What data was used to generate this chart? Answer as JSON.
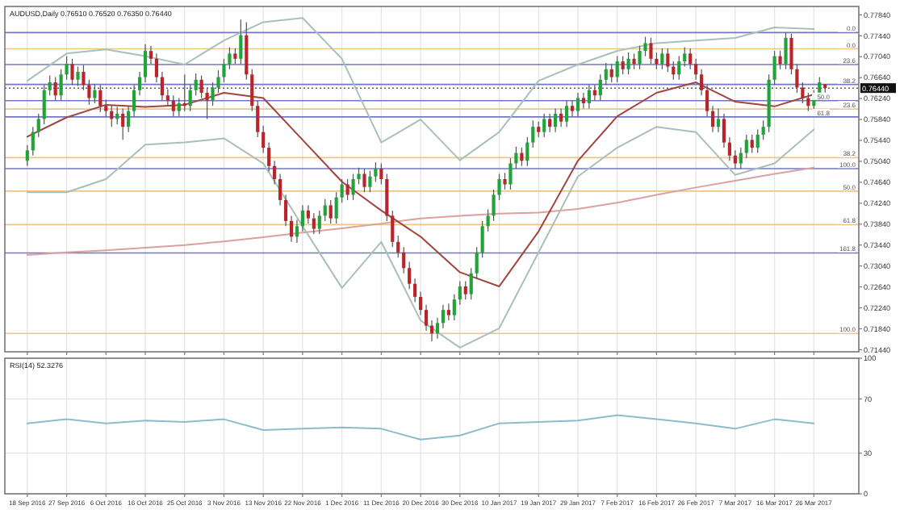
{
  "chart_data": [
    {
      "type": "candlestick",
      "title": "AUDUSD,Daily 0.76510 0.76520 0.76350 0.76440",
      "categories": [
        "18 Sep 2016",
        null,
        null,
        null,
        null,
        null,
        null,
        "27 Sep 2016",
        null,
        null,
        null,
        null,
        null,
        null,
        "6 Oct 2016",
        null,
        null,
        null,
        null,
        null,
        null,
        "16 Oct 2016",
        null,
        null,
        null,
        null,
        null,
        null,
        "25 Oct 2016",
        null,
        null,
        null,
        null,
        null,
        null,
        "3 Nov 2016",
        null,
        null,
        null,
        null,
        null,
        null,
        "13 Nov 2016",
        null,
        null,
        null,
        null,
        null,
        null,
        "22 Nov 2016",
        null,
        null,
        null,
        null,
        null,
        null,
        "1 Dec 2016",
        null,
        null,
        null,
        null,
        null,
        null,
        "11 Dec 2016",
        null,
        null,
        null,
        null,
        null,
        null,
        "20 Dec 2016",
        null,
        null,
        null,
        null,
        null,
        null,
        "30 Dec 2016",
        null,
        null,
        null,
        null,
        null,
        null,
        "10 Jan 2017",
        null,
        null,
        null,
        null,
        null,
        null,
        "19 Jan 2017",
        null,
        null,
        null,
        null,
        null,
        null,
        "29 Jan 2017",
        null,
        null,
        null,
        null,
        null,
        null,
        "7 Feb 2017",
        null,
        null,
        null,
        null,
        null,
        null,
        "16 Feb 2017",
        null,
        null,
        null,
        null,
        null,
        null,
        "26 Feb 2017",
        null,
        null,
        null,
        null,
        null,
        null,
        "7 Mar 2017",
        null,
        null,
        null,
        null,
        null,
        null,
        "16 Mar 2017",
        null,
        null,
        null,
        null,
        null,
        null,
        "26 Mar 2017",
        null,
        null
      ],
      "ohlc": [
        [
          0.7505,
          0.7535,
          0.7495,
          0.7525
        ],
        [
          0.7525,
          0.757,
          0.7515,
          0.756
        ],
        [
          0.756,
          0.7595,
          0.755,
          0.7585
        ],
        [
          0.7585,
          0.765,
          0.7575,
          0.764
        ],
        [
          0.764,
          0.7668,
          0.763,
          0.7655
        ],
        [
          0.7655,
          0.7665,
          0.762,
          0.763
        ],
        [
          0.763,
          0.768,
          0.762,
          0.767
        ],
        [
          0.767,
          0.7705,
          0.766,
          0.769
        ],
        [
          0.769,
          0.77,
          0.765,
          0.766
        ],
        [
          0.766,
          0.7685,
          0.7648,
          0.7675
        ],
        [
          0.7675,
          0.7688,
          0.764,
          0.765
        ],
        [
          0.765,
          0.766,
          0.7612,
          0.7625
        ],
        [
          0.7625,
          0.7652,
          0.7615,
          0.764
        ],
        [
          0.764,
          0.765,
          0.7598,
          0.761
        ],
        [
          0.761,
          0.7622,
          0.759,
          0.76
        ],
        [
          0.76,
          0.7612,
          0.757,
          0.7585
        ],
        [
          0.7585,
          0.7608,
          0.7575,
          0.7595
        ],
        [
          0.7595,
          0.7605,
          0.7545,
          0.757
        ],
        [
          0.757,
          0.761,
          0.756,
          0.76
        ],
        [
          0.76,
          0.765,
          0.759,
          0.764
        ],
        [
          0.764,
          0.7675,
          0.763,
          0.7665
        ],
        [
          0.7665,
          0.7728,
          0.7655,
          0.7715
        ],
        [
          0.7715,
          0.7725,
          0.769,
          0.77
        ],
        [
          0.77,
          0.771,
          0.7655,
          0.7665
        ],
        [
          0.7665,
          0.7675,
          0.762,
          0.763
        ],
        [
          0.763,
          0.7642,
          0.761,
          0.762
        ],
        [
          0.762,
          0.763,
          0.759,
          0.76
        ],
        [
          0.76,
          0.7625,
          0.759,
          0.7615
        ],
        [
          0.7615,
          0.767,
          0.76,
          0.761
        ],
        [
          0.761,
          0.765,
          0.76,
          0.764
        ],
        [
          0.764,
          0.7672,
          0.763,
          0.766
        ],
        [
          0.766,
          0.7668,
          0.7625,
          0.7635
        ],
        [
          0.7635,
          0.7645,
          0.7585,
          0.762
        ],
        [
          0.762,
          0.7655,
          0.761,
          0.7645
        ],
        [
          0.7645,
          0.7678,
          0.7635,
          0.7665
        ],
        [
          0.7665,
          0.77,
          0.7655,
          0.769
        ],
        [
          0.769,
          0.7722,
          0.768,
          0.771
        ],
        [
          0.771,
          0.772,
          0.769,
          0.77
        ],
        [
          0.77,
          0.7775,
          0.769,
          0.7745
        ],
        [
          0.7745,
          0.777,
          0.766,
          0.767
        ],
        [
          0.767,
          0.768,
          0.76,
          0.761
        ],
        [
          0.761,
          0.762,
          0.755,
          0.756
        ],
        [
          0.756,
          0.7572,
          0.752,
          0.753
        ],
        [
          0.753,
          0.754,
          0.7485,
          0.7495
        ],
        [
          0.7495,
          0.7505,
          0.746,
          0.747
        ],
        [
          0.747,
          0.748,
          0.742,
          0.743
        ],
        [
          0.743,
          0.744,
          0.738,
          0.739
        ],
        [
          0.739,
          0.74,
          0.735,
          0.736
        ],
        [
          0.736,
          0.7392,
          0.7348,
          0.738
        ],
        [
          0.738,
          0.742,
          0.737,
          0.741
        ],
        [
          0.741,
          0.742,
          0.7385,
          0.7395
        ],
        [
          0.7395,
          0.7405,
          0.7365,
          0.7375
        ],
        [
          0.7375,
          0.741,
          0.7365,
          0.74
        ],
        [
          0.74,
          0.7432,
          0.739,
          0.742
        ],
        [
          0.742,
          0.743,
          0.7385,
          0.7395
        ],
        [
          0.7395,
          0.7445,
          0.7385,
          0.7435
        ],
        [
          0.7435,
          0.747,
          0.7425,
          0.746
        ],
        [
          0.746,
          0.747,
          0.743,
          0.744
        ],
        [
          0.744,
          0.748,
          0.743,
          0.747
        ],
        [
          0.747,
          0.7492,
          0.746,
          0.748
        ],
        [
          0.748,
          0.749,
          0.7445,
          0.7455
        ],
        [
          0.7455,
          0.7486,
          0.7445,
          0.7475
        ],
        [
          0.7475,
          0.7502,
          0.7465,
          0.749
        ],
        [
          0.749,
          0.75,
          0.746,
          0.747
        ],
        [
          0.747,
          0.748,
          0.739,
          0.74
        ],
        [
          0.74,
          0.741,
          0.734,
          0.735
        ],
        [
          0.735,
          0.7362,
          0.732,
          0.733
        ],
        [
          0.733,
          0.734,
          0.729,
          0.73
        ],
        [
          0.73,
          0.7312,
          0.726,
          0.727
        ],
        [
          0.727,
          0.728,
          0.7235,
          0.7245
        ],
        [
          0.7245,
          0.7255,
          0.721,
          0.722
        ],
        [
          0.722,
          0.723,
          0.718,
          0.719
        ],
        [
          0.719,
          0.72,
          0.716,
          0.7175
        ],
        [
          0.7175,
          0.7205,
          0.7165,
          0.7195
        ],
        [
          0.7195,
          0.723,
          0.7185,
          0.722
        ],
        [
          0.722,
          0.7232,
          0.72,
          0.721
        ],
        [
          0.721,
          0.725,
          0.72,
          0.724
        ],
        [
          0.724,
          0.7275,
          0.723,
          0.7265
        ],
        [
          0.7265,
          0.7275,
          0.724,
          0.725
        ],
        [
          0.725,
          0.73,
          0.724,
          0.729
        ],
        [
          0.729,
          0.734,
          0.728,
          0.733
        ],
        [
          0.733,
          0.739,
          0.732,
          0.738
        ],
        [
          0.738,
          0.7412,
          0.737,
          0.74
        ],
        [
          0.74,
          0.745,
          0.739,
          0.744
        ],
        [
          0.744,
          0.748,
          0.743,
          0.747
        ],
        [
          0.747,
          0.7482,
          0.745,
          0.746
        ],
        [
          0.746,
          0.751,
          0.745,
          0.75
        ],
        [
          0.75,
          0.7532,
          0.749,
          0.752
        ],
        [
          0.752,
          0.753,
          0.7495,
          0.7505
        ],
        [
          0.7505,
          0.755,
          0.7495,
          0.754
        ],
        [
          0.754,
          0.7582,
          0.753,
          0.757
        ],
        [
          0.757,
          0.758,
          0.755,
          0.756
        ],
        [
          0.756,
          0.7595,
          0.755,
          0.7585
        ],
        [
          0.7585,
          0.7595,
          0.756,
          0.757
        ],
        [
          0.757,
          0.7605,
          0.756,
          0.7595
        ],
        [
          0.7595,
          0.7605,
          0.757,
          0.758
        ],
        [
          0.758,
          0.762,
          0.757,
          0.761
        ],
        [
          0.761,
          0.762,
          0.759,
          0.76
        ],
        [
          0.76,
          0.7635,
          0.759,
          0.7625
        ],
        [
          0.7625,
          0.7635,
          0.7605,
          0.7615
        ],
        [
          0.7615,
          0.765,
          0.7605,
          0.764
        ],
        [
          0.764,
          0.765,
          0.762,
          0.763
        ],
        [
          0.763,
          0.767,
          0.762,
          0.766
        ],
        [
          0.766,
          0.7692,
          0.765,
          0.768
        ],
        [
          0.768,
          0.769,
          0.7655,
          0.7665
        ],
        [
          0.7665,
          0.7705,
          0.7655,
          0.7695
        ],
        [
          0.7695,
          0.7705,
          0.767,
          0.768
        ],
        [
          0.768,
          0.7712,
          0.767,
          0.77
        ],
        [
          0.77,
          0.771,
          0.768,
          0.769
        ],
        [
          0.769,
          0.7725,
          0.768,
          0.7715
        ],
        [
          0.7715,
          0.7742,
          0.7705,
          0.773
        ],
        [
          0.773,
          0.774,
          0.769,
          0.77
        ],
        [
          0.77,
          0.7712,
          0.768,
          0.769
        ],
        [
          0.769,
          0.772,
          0.768,
          0.771
        ],
        [
          0.771,
          0.772,
          0.7675,
          0.7685
        ],
        [
          0.7685,
          0.7695,
          0.766,
          0.767
        ],
        [
          0.767,
          0.7705,
          0.766,
          0.7695
        ],
        [
          0.7695,
          0.7722,
          0.7685,
          0.771
        ],
        [
          0.771,
          0.772,
          0.768,
          0.769
        ],
        [
          0.769,
          0.77,
          0.766,
          0.767
        ],
        [
          0.767,
          0.768,
          0.763,
          0.764
        ],
        [
          0.764,
          0.765,
          0.759,
          0.76
        ],
        [
          0.76,
          0.761,
          0.756,
          0.757
        ],
        [
          0.757,
          0.7605,
          0.756,
          0.7585
        ],
        [
          0.7585,
          0.7595,
          0.753,
          0.754
        ],
        [
          0.754,
          0.755,
          0.7505,
          0.7515
        ],
        [
          0.7515,
          0.7525,
          0.749,
          0.75
        ],
        [
          0.75,
          0.753,
          0.749,
          0.752
        ],
        [
          0.752,
          0.7555,
          0.751,
          0.7545
        ],
        [
          0.7545,
          0.7555,
          0.752,
          0.753
        ],
        [
          0.753,
          0.7565,
          0.752,
          0.7555
        ],
        [
          0.7555,
          0.7582,
          0.7545,
          0.757
        ],
        [
          0.757,
          0.767,
          0.756,
          0.766
        ],
        [
          0.766,
          0.7715,
          0.765,
          0.7705
        ],
        [
          0.7705,
          0.7715,
          0.768,
          0.769
        ],
        [
          0.769,
          0.775,
          0.768,
          0.774
        ],
        [
          0.774,
          0.7748,
          0.767,
          0.768
        ],
        [
          0.768,
          0.769,
          0.7635,
          0.7645
        ],
        [
          0.7645,
          0.7655,
          0.7615,
          0.7625
        ],
        [
          0.7625,
          0.7635,
          0.76,
          0.761
        ],
        [
          0.761,
          0.764,
          0.76,
          0.763
        ],
        [
          0.763,
          0.7665,
          0.762,
          0.7655
        ],
        [
          0.7651,
          0.7652,
          0.7635,
          0.7644
        ]
      ],
      "colors": [
        "#22a33a",
        "#22a33a",
        "#22a33a",
        "#22a33a",
        "#22a33a",
        "#b8262c",
        "#22a33a",
        "#22a33a",
        "#b8262c",
        "#22a33a",
        "#b8262c",
        "#b8262c",
        "#22a33a",
        "#b8262c",
        "#b8262c",
        "#b8262c",
        "#22a33a",
        "#b8262c",
        "#22a33a",
        "#22a33a",
        "#22a33a",
        "#22a33a",
        "#b8262c",
        "#b8262c",
        "#b8262c",
        "#b8262c",
        "#b8262c",
        "#22a33a",
        "#b8262c",
        "#22a33a",
        "#22a33a",
        "#b8262c",
        "#b8262c",
        "#22a33a",
        "#22a33a",
        "#22a33a",
        "#22a33a",
        "#b8262c",
        "#22a33a",
        "#b8262c",
        "#b8262c",
        "#b8262c",
        "#b8262c",
        "#b8262c",
        "#b8262c",
        "#b8262c",
        "#b8262c",
        "#b8262c",
        "#22a33a",
        "#22a33a",
        "#b8262c",
        "#b8262c",
        "#22a33a",
        "#22a33a",
        "#b8262c",
        "#22a33a",
        "#22a33a",
        "#b8262c",
        "#22a33a",
        "#22a33a",
        "#b8262c",
        "#22a33a",
        "#22a33a",
        "#b8262c",
        "#b8262c",
        "#b8262c",
        "#b8262c",
        "#b8262c",
        "#b8262c",
        "#b8262c",
        "#b8262c",
        "#b8262c",
        "#b8262c",
        "#22a33a",
        "#22a33a",
        "#b8262c",
        "#22a33a",
        "#22a33a",
        "#b8262c",
        "#22a33a",
        "#22a33a",
        "#22a33a",
        "#22a33a",
        "#22a33a",
        "#22a33a",
        "#b8262c",
        "#22a33a",
        "#22a33a",
        "#b8262c",
        "#22a33a",
        "#22a33a",
        "#b8262c",
        "#22a33a",
        "#b8262c",
        "#22a33a",
        "#b8262c",
        "#22a33a",
        "#b8262c",
        "#22a33a",
        "#b8262c",
        "#22a33a",
        "#b8262c",
        "#22a33a",
        "#22a33a",
        "#b8262c",
        "#22a33a",
        "#b8262c",
        "#22a33a",
        "#b8262c",
        "#22a33a",
        "#22a33a",
        "#b8262c",
        "#b8262c",
        "#22a33a",
        "#b8262c",
        "#b8262c",
        "#22a33a",
        "#22a33a",
        "#b8262c",
        "#b8262c",
        "#b8262c",
        "#b8262c",
        "#b8262c",
        "#22a33a",
        "#b8262c",
        "#b8262c",
        "#b8262c",
        "#22a33a",
        "#22a33a",
        "#b8262c",
        "#22a33a",
        "#22a33a",
        "#22a33a",
        "#22a33a",
        "#b8262c",
        "#22a33a",
        "#b8262c",
        "#b8262c",
        "#b8262c",
        "#b8262c",
        "#22a33a",
        "#22a33a",
        "#b8262c"
      ],
      "series": [
        {
          "type": "line",
          "color": "#dca0a0",
          "x": [
            "18 Sep 2016",
            "27 Sep 2016",
            "6 Oct 2016",
            "16 Oct 2016",
            "25 Oct 2016",
            "3 Nov 2016",
            "13 Nov 2016",
            "22 Nov 2016",
            "1 Dec 2016",
            "11 Dec 2016",
            "20 Dec 2016",
            "30 Dec 2016",
            "10 Jan 2017",
            "19 Jan 2017",
            "29 Jan 2017",
            "7 Feb 2017",
            "16 Feb 2017",
            "26 Feb 2017",
            "7 Mar 2017",
            "16 Mar 2017",
            "26 Mar 2017"
          ],
          "values": [
            0.7325,
            0.733,
            0.7334,
            0.7339,
            0.7344,
            0.7351,
            0.7359,
            0.7368,
            0.7376,
            0.7385,
            0.7395,
            0.74,
            0.7404,
            0.7406,
            0.7413,
            0.7425,
            0.744,
            0.7454,
            0.7467,
            0.748,
            0.7492
          ]
        },
        {
          "type": "line",
          "color": "#a0453f",
          "x": [
            "18 Sep 2016",
            "27 Sep 2016",
            "6 Oct 2016",
            "16 Oct 2016",
            "25 Oct 2016",
            "3 Nov 2016",
            "13 Nov 2016",
            "22 Nov 2016",
            "1 Dec 2016",
            "11 Dec 2016",
            "20 Dec 2016",
            "30 Dec 2016",
            "10 Jan 2017",
            "19 Jan 2017",
            "29 Jan 2017",
            "7 Feb 2017",
            "16 Feb 2017",
            "26 Feb 2017",
            "7 Mar 2017",
            "16 Mar 2017",
            "26 Mar 2017"
          ],
          "values": [
            0.7551,
            0.7588,
            0.7612,
            0.7608,
            0.7612,
            0.7635,
            0.7625,
            0.7545,
            0.7465,
            0.741,
            0.736,
            0.7292,
            0.7265,
            0.737,
            0.7505,
            0.759,
            0.7635,
            0.7655,
            0.7618,
            0.7609,
            0.7632
          ]
        },
        {
          "type": "line",
          "color": "#a8c0b8",
          "x": [
            "18 Sep 2016",
            "27 Sep 2016",
            "6 Oct 2016",
            "16 Oct 2016",
            "25 Oct 2016",
            "3 Nov 2016",
            "13 Nov 2016",
            "22 Nov 2016",
            "1 Dec 2016",
            "11 Dec 2016",
            "20 Dec 2016",
            "30 Dec 2016",
            "10 Jan 2017",
            "19 Jan 2017",
            "29 Jan 2017",
            "7 Feb 2017",
            "16 Feb 2017",
            "26 Feb 2017",
            "7 Mar 2017",
            "16 Mar 2017",
            "26 Mar 2017"
          ],
          "values": [
            0.7658,
            0.771,
            0.7718,
            0.7705,
            0.7689,
            0.7735,
            0.777,
            0.7778,
            0.77,
            0.754,
            0.7584,
            0.7506,
            0.756,
            0.7658,
            0.7689,
            0.7715,
            0.773,
            0.7735,
            0.774,
            0.776,
            0.7757
          ]
        },
        {
          "type": "line",
          "color": "#a8c0b8",
          "x": [
            "18 Sep 2016",
            "27 Sep 2016",
            "6 Oct 2016",
            "16 Oct 2016",
            "25 Oct 2016",
            "3 Nov 2016",
            "13 Nov 2016",
            "22 Nov 2016",
            "1 Dec 2016",
            "11 Dec 2016",
            "20 Dec 2016",
            "30 Dec 2016",
            "10 Jan 2017",
            "19 Jan 2017",
            "29 Jan 2017",
            "7 Feb 2017",
            "16 Feb 2017",
            "26 Feb 2017",
            "7 Mar 2017",
            "16 Mar 2017",
            "26 Mar 2017"
          ],
          "values": [
            0.7445,
            0.7445,
            0.747,
            0.7536,
            0.754,
            0.7548,
            0.75,
            0.738,
            0.7262,
            0.735,
            0.72,
            0.7148,
            0.7185,
            0.733,
            0.7475,
            0.753,
            0.757,
            0.756,
            0.7478,
            0.75,
            0.7565
          ]
        }
      ],
      "ref_lines": [
        {
          "axis": "y",
          "value": 0.7719,
          "color": "#eec584"
        },
        {
          "axis": "y",
          "value": 0.7604,
          "color": "#eec584"
        },
        {
          "axis": "y",
          "value": 0.7511,
          "color": "#eec584"
        },
        {
          "axis": "y",
          "value": 0.7447,
          "color": "#eec584"
        },
        {
          "axis": "y",
          "value": 0.7383,
          "color": "#eec584"
        },
        {
          "axis": "y",
          "value": 0.7175,
          "color": "#eec584"
        },
        {
          "axis": "y",
          "value": 0.775,
          "color": "#7276c4"
        },
        {
          "axis": "y",
          "value": 0.7689,
          "color": "#7276c4"
        },
        {
          "axis": "y",
          "value": 0.7651,
          "color": "#7276c4"
        },
        {
          "axis": "y",
          "value": 0.762,
          "color": "#7276c4"
        },
        {
          "axis": "y",
          "value": 0.7589,
          "color": "#7276c4"
        },
        {
          "axis": "y",
          "value": 0.749,
          "color": "#7276c4"
        },
        {
          "axis": "y",
          "value": 0.7329,
          "color": "#7276c4"
        },
        {
          "axis": "y",
          "value": 0.7644,
          "label": "0.76440",
          "color": "#111111",
          "line_style": "dotted"
        }
      ],
      "annotations": [
        {
          "text": "0.0",
          "y": 0.7719
        },
        {
          "text": "23.6",
          "y": 0.7604
        },
        {
          "text": "38.2",
          "y": 0.7511
        },
        {
          "text": "50.0",
          "y": 0.7447
        },
        {
          "text": "61.8",
          "y": 0.7383
        },
        {
          "text": "100.0",
          "y": 0.7175
        },
        {
          "text": "0.0",
          "y": 0.775
        },
        {
          "text": "23.6",
          "y": 0.7689
        },
        {
          "text": "38.2",
          "y": 0.7651
        },
        {
          "text": "50.0",
          "y": 0.762
        },
        {
          "text": "61.8",
          "y": 0.7589
        },
        {
          "text": "100.0",
          "y": 0.749
        },
        {
          "text": "161.8",
          "y": 0.7329
        }
      ],
      "ylim": [
        0.714,
        0.78
      ],
      "yticks": [
        {
          "value": 0.7144,
          "label": "0.71440"
        },
        {
          "value": 0.7184,
          "label": "0.71840"
        },
        {
          "value": 0.7224,
          "label": "0.72240"
        },
        {
          "value": 0.7264,
          "label": "0.72640"
        },
        {
          "value": 0.7304,
          "label": "0.73040"
        },
        {
          "value": 0.7344,
          "label": "0.73440"
        },
        {
          "value": 0.7384,
          "label": "0.73840"
        },
        {
          "value": 0.7424,
          "label": "0.74240"
        },
        {
          "value": 0.7464,
          "label": "0.74640"
        },
        {
          "value": 0.7504,
          "label": "0.75040"
        },
        {
          "value": 0.7544,
          "label": "0.75440"
        },
        {
          "value": 0.7584,
          "label": "0.75840"
        },
        {
          "value": 0.7624,
          "label": "0.76240"
        },
        {
          "value": 0.7664,
          "label": "0.76640"
        },
        {
          "value": 0.7704,
          "label": "0.77040"
        },
        {
          "value": 0.7744,
          "label": "0.77440"
        },
        {
          "value": 0.7784,
          "label": "0.77840"
        }
      ],
      "grid": "x",
      "tick_labels": "y"
    },
    {
      "type": "line",
      "title": "RSI(14) 52.3276",
      "categories": [
        "18 Sep 2016",
        null,
        null,
        null,
        null,
        null,
        null,
        "27 Sep 2016",
        null,
        null,
        null,
        null,
        null,
        null,
        "6 Oct 2016",
        null,
        null,
        null,
        null,
        null,
        null,
        "16 Oct 2016",
        null,
        null,
        null,
        null,
        null,
        null,
        "25 Oct 2016",
        null,
        null,
        null,
        null,
        null,
        null,
        "3 Nov 2016",
        null,
        null,
        null,
        null,
        null,
        null,
        "13 Nov 2016",
        null,
        null,
        null,
        null,
        null,
        null,
        "22 Nov 2016",
        null,
        null,
        null,
        null,
        null,
        null,
        "1 Dec 2016",
        null,
        null,
        null,
        null,
        null,
        null,
        "11 Dec 2016",
        null,
        null,
        null,
        null,
        null,
        null,
        "20 Dec 2016",
        null,
        null,
        null,
        null,
        null,
        null,
        "30 Dec 2016",
        null,
        null,
        null,
        null,
        null,
        null,
        "10 Jan 2017",
        null,
        null,
        null,
        null,
        null,
        null,
        "19 Jan 2017",
        null,
        null,
        null,
        null,
        null,
        null,
        "29 Jan 2017",
        null,
        null,
        null,
        null,
        null,
        null,
        "7 Feb 2017",
        null,
        null,
        null,
        null,
        null,
        null,
        "16 Feb 2017",
        null,
        null,
        null,
        null,
        null,
        null,
        "26 Feb 2017",
        null,
        null,
        null,
        null,
        null,
        null,
        "7 Mar 2017",
        null,
        null,
        null,
        null,
        null,
        null,
        "16 Mar 2017",
        null,
        null,
        null,
        null,
        null,
        null,
        "26 Mar 2017",
        null,
        null
      ],
      "series": [
        {
          "color": "#8cbccc",
          "x": [
            "18 Sep 2016",
            "27 Sep 2016",
            "6 Oct 2016",
            "16 Oct 2016",
            "25 Oct 2016",
            "3 Nov 2016",
            "13 Nov 2016",
            "22 Nov 2016",
            "1 Dec 2016",
            "11 Dec 2016",
            "20 Dec 2016",
            "30 Dec 2016",
            "10 Jan 2017",
            "19 Jan 2017",
            "29 Jan 2017",
            "7 Feb 2017",
            "16 Feb 2017",
            "26 Feb 2017",
            "7 Mar 2017",
            "16 Mar 2017",
            "26 Mar 2017"
          ],
          "values": [
            52,
            55,
            52,
            54,
            53,
            55,
            47,
            48,
            49,
            48,
            40,
            43,
            52,
            53,
            54,
            58,
            55,
            52,
            48,
            55,
            52
          ]
        }
      ],
      "ylim": [
        0,
        100
      ],
      "yticks": [
        0,
        30,
        70,
        100
      ],
      "grid": true
    }
  ]
}
